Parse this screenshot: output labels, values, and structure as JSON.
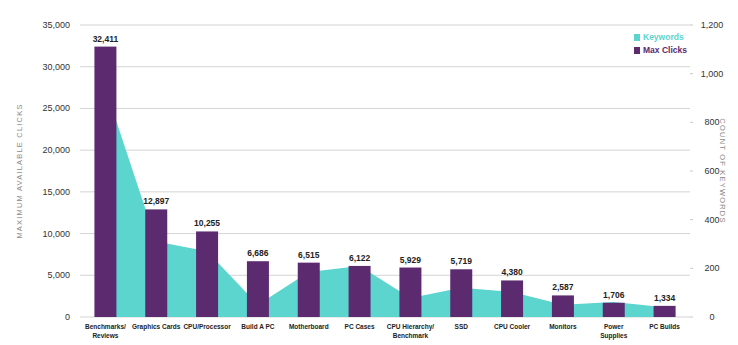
{
  "chart_data": {
    "type": "bar",
    "categories": [
      "Benchmarks/\nReviews",
      "Graphics Cards",
      "CPU/Processor",
      "Build A PC",
      "Motherboard",
      "PC Cases",
      "CPU Hierarchy/\nBenchmark",
      "SSD",
      "CPU Cooler",
      "Monitors",
      "Power\nSupplies",
      "PC Builds"
    ],
    "series": [
      {
        "name": "Keywords",
        "type": "area",
        "axis": "y2",
        "color": "#5dd5cf",
        "values": [
          940,
          310,
          270,
          50,
          185,
          210,
          78,
          120,
          103,
          50,
          62,
          40
        ]
      },
      {
        "name": "Max Clicks",
        "type": "bar",
        "color": "#5b2a6f",
        "values": [
          32411,
          12897,
          10255,
          6686,
          6515,
          6122,
          5929,
          5719,
          4380,
          2587,
          1706,
          1334
        ],
        "value_labels": [
          "32,411",
          "12,897",
          "10,255",
          "6,686",
          "6,515",
          "6,122",
          "5,929",
          "5,719",
          "4,380",
          "2,587",
          "1,706",
          "1,334"
        ]
      }
    ],
    "y_label": "MAXIMUM AVAILABLE CLICKS",
    "y2_label": "COUNT OF KEYWORDS",
    "ylim": [
      0,
      35000
    ],
    "yticks": [
      0,
      {
        "value": 5000,
        "label": "5,000"
      },
      {
        "value": 10000,
        "label": "10,000"
      },
      {
        "value": 15000,
        "label": "15,000"
      },
      {
        "value": 20000,
        "label": "20,000"
      },
      {
        "value": 25000,
        "label": "25,000"
      },
      {
        "value": 30000,
        "label": "30,000"
      },
      {
        "value": 35000,
        "label": "35,000"
      }
    ],
    "y2lim": [
      0,
      1200
    ],
    "y2ticks": [
      0,
      200,
      400,
      600,
      800,
      {
        "value": 1000,
        "label": "1,000"
      },
      {
        "value": 1200,
        "label": "1,200"
      }
    ],
    "grid": true,
    "legend": "upper right",
    "data_labels": true
  }
}
